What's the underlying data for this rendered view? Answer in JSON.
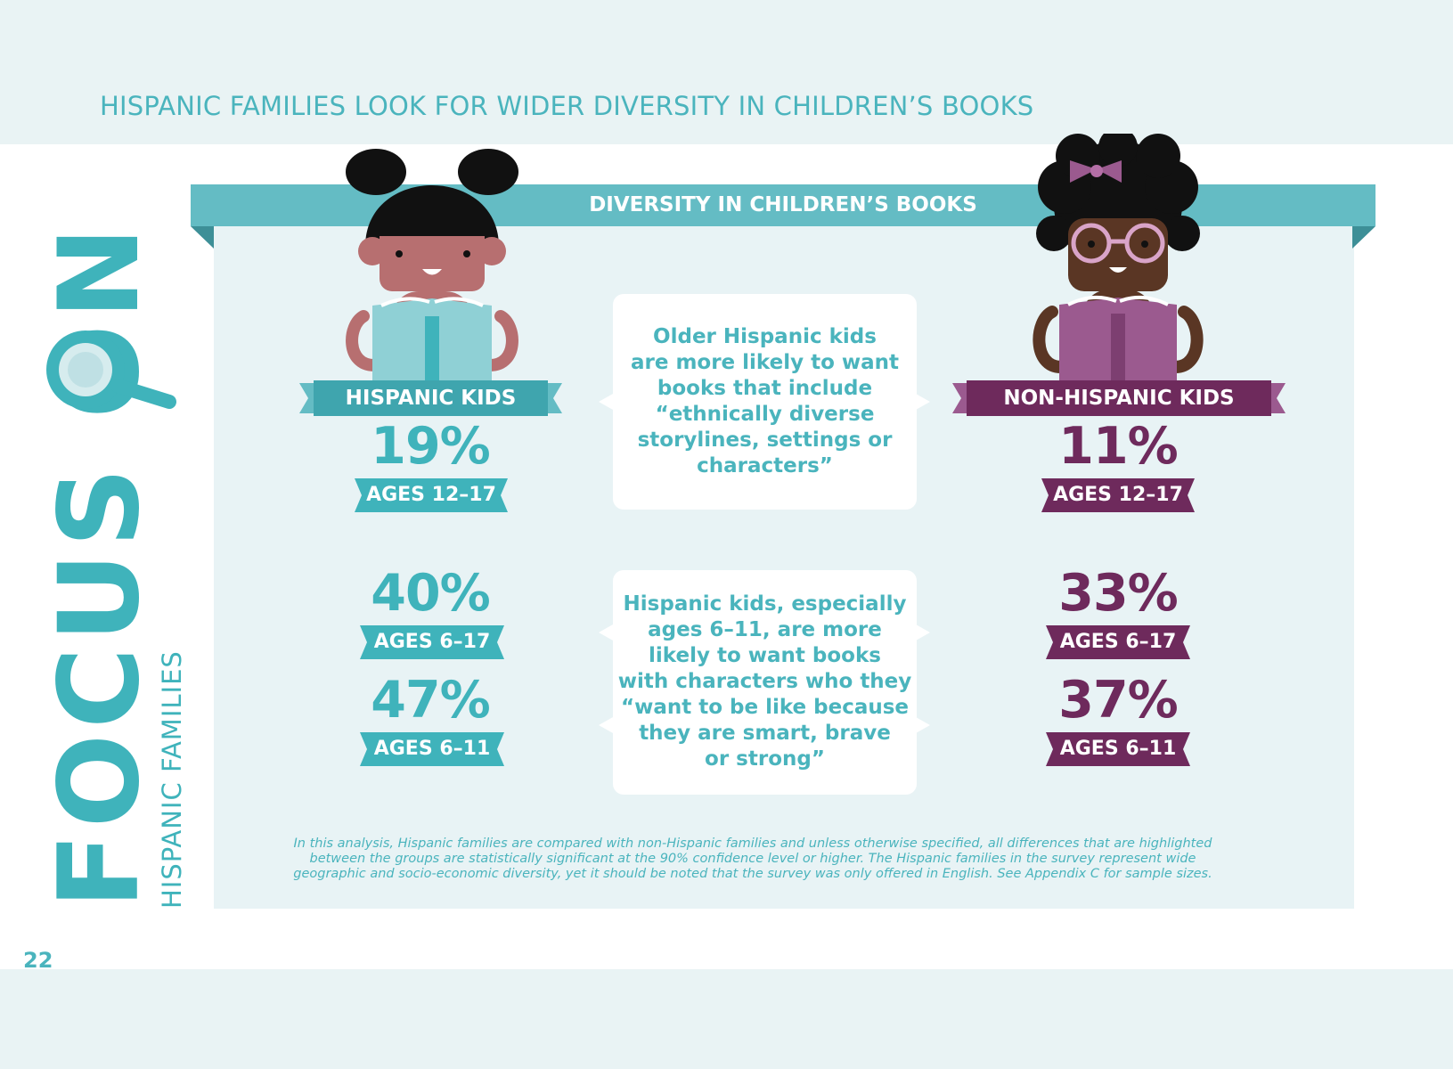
{
  "page": {
    "title": "HISPANIC FAMILIES LOOK FOR WIDER DIVERSITY IN CHILDREN’S BOOKS",
    "number": "22",
    "side_title": "FOCUS ON",
    "side_subtitle": "HISPANIC FAMILIES"
  },
  "banner": {
    "title": "DIVERSITY IN CHILDREN’S BOOKS"
  },
  "groups": {
    "hispanic": {
      "label": "HISPANIC KIDS",
      "stats": [
        {
          "value": "19%",
          "ages": "AGES 12–17"
        },
        {
          "value": "40%",
          "ages": "AGES 6–17"
        },
        {
          "value": "47%",
          "ages": "AGES 6–11"
        }
      ]
    },
    "non_hispanic": {
      "label": "NON-HISPANIC KIDS",
      "stats": [
        {
          "value": "11%",
          "ages": "AGES 12–17"
        },
        {
          "value": "33%",
          "ages": "AGES 6–17"
        },
        {
          "value": "37%",
          "ages": "AGES 6–11"
        }
      ]
    }
  },
  "cards": [
    {
      "lines": [
        "Older Hispanic kids",
        "are more likely to want",
        "books that include",
        "“ethnically diverse",
        "storylines, settings or",
        "characters”"
      ]
    },
    {
      "lines": [
        "Hispanic kids, especially",
        "ages 6–11, are more",
        "likely to want books",
        "with characters who they",
        "“want to be like because",
        "they are smart, brave",
        "or strong”"
      ]
    }
  ],
  "footnote": {
    "lines": [
      "In this analysis, Hispanic families are compared with non-Hispanic families and unless otherwise specified, all differences that are highlighted",
      "between the groups are statistically significant at the 90% confidence level or higher. The Hispanic families in the survey represent wide",
      "geographic and socio-economic diversity, yet it should be noted that the survey was only offered in English. See Appendix C for sample sizes."
    ]
  },
  "colors": {
    "teal": "#3fb3bb",
    "plum": "#6e2a5c",
    "light_bg": "#e9f3f4"
  }
}
